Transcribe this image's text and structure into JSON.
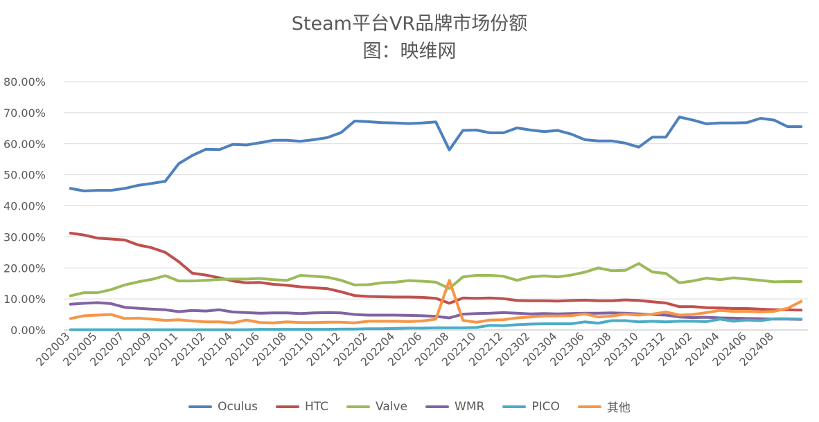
{
  "chart_data": {
    "type": "line",
    "title": "Steam平台VR品牌市场份额",
    "subtitle": "图：映维网",
    "xlabel": "",
    "ylabel": "",
    "ylim": [
      0,
      80
    ],
    "y_ticks": [
      "0.00%",
      "10.00%",
      "20.00%",
      "30.00%",
      "40.00%",
      "50.00%",
      "60.00%",
      "70.00%",
      "80.00%"
    ],
    "grid": true,
    "legend_position": "bottom",
    "categories": [
      "202003",
      "202004",
      "202005",
      "202006",
      "202007",
      "202008",
      "202009",
      "202010",
      "202011",
      "202012",
      "202101",
      "202102",
      "202103",
      "202104",
      "202105",
      "202106",
      "202107",
      "202108",
      "202109",
      "202110",
      "202111",
      "202112",
      "202201",
      "202202",
      "202203",
      "202204",
      "202205",
      "202206",
      "202207",
      "202208",
      "202209",
      "202210",
      "202211",
      "202212",
      "202301",
      "202302",
      "202303",
      "202304",
      "202305",
      "202306",
      "202307",
      "202308",
      "202309",
      "202310",
      "202311",
      "202312",
      "202401",
      "202402",
      "202403",
      "202404",
      "202405",
      "202406",
      "202407",
      "202408",
      "202409"
    ],
    "x_tick_labels": [
      "202003",
      "202005",
      "202007",
      "202009",
      "202011",
      "202102",
      "202104",
      "202106",
      "202108",
      "202110",
      "202112",
      "202202",
      "202204",
      "202206",
      "202208",
      "202210",
      "202212",
      "202302",
      "202304",
      "202306",
      "202308",
      "202310",
      "202312",
      "202402",
      "202404",
      "202406",
      "202408"
    ],
    "x_tick_indices": [
      0,
      2,
      4,
      6,
      8,
      10,
      12,
      14,
      16,
      18,
      20,
      22,
      24,
      26,
      28,
      30,
      32,
      34,
      36,
      38,
      40,
      42,
      44,
      46,
      48,
      50,
      52
    ],
    "series": [
      {
        "name": "Oculus",
        "color": "#4e81bd",
        "values": [
          45.6,
          44.8,
          45.0,
          45.0,
          45.6,
          46.6,
          47.2,
          47.9,
          53.6,
          56.2,
          58.2,
          58.1,
          59.8,
          59.6,
          60.3,
          61.1,
          61.1,
          60.8,
          61.3,
          62.0,
          63.6,
          67.3,
          67.1,
          66.8,
          66.7,
          66.5,
          66.7,
          67.0,
          58.0,
          64.3,
          64.4,
          63.5,
          63.5,
          65.1,
          64.4,
          63.9,
          64.3,
          63.1,
          61.3,
          60.9,
          60.9,
          60.2,
          58.9,
          62.1,
          62.1,
          68.6,
          67.6,
          66.4,
          66.7,
          66.7,
          66.8,
          68.2,
          67.6,
          65.5,
          65.5
        ]
      },
      {
        "name": "HTC",
        "color": "#c0504d",
        "values": [
          31.2,
          30.6,
          29.6,
          29.3,
          29.0,
          27.4,
          26.5,
          25.0,
          22.0,
          18.3,
          17.7,
          16.8,
          15.8,
          15.2,
          15.3,
          14.7,
          14.4,
          13.9,
          13.6,
          13.3,
          12.3,
          11.1,
          10.8,
          10.7,
          10.6,
          10.6,
          10.5,
          10.2,
          8.6,
          10.3,
          10.2,
          10.3,
          10.1,
          9.5,
          9.4,
          9.4,
          9.3,
          9.5,
          9.6,
          9.4,
          9.4,
          9.7,
          9.5,
          9.1,
          8.7,
          7.5,
          7.5,
          7.2,
          7.1,
          6.9,
          6.9,
          6.7,
          6.5,
          6.5,
          6.4
        ]
      },
      {
        "name": "Valve",
        "color": "#9bbb59",
        "values": [
          11.0,
          12.0,
          12.0,
          13.0,
          14.5,
          15.5,
          16.3,
          17.5,
          15.8,
          15.8,
          16.0,
          16.3,
          16.4,
          16.4,
          16.6,
          16.2,
          16.0,
          17.6,
          17.3,
          17.0,
          16.0,
          14.5,
          14.6,
          15.2,
          15.4,
          15.9,
          15.7,
          15.4,
          13.4,
          17.1,
          17.6,
          17.6,
          17.3,
          16.0,
          17.1,
          17.4,
          17.1,
          17.7,
          18.6,
          20.0,
          19.1,
          19.2,
          21.4,
          18.7,
          18.2,
          15.2,
          15.8,
          16.7,
          16.2,
          16.8,
          16.4,
          16.0,
          15.5,
          15.6,
          15.6
        ]
      },
      {
        "name": "WMR",
        "color": "#8064a2",
        "values": [
          8.3,
          8.6,
          8.8,
          8.5,
          7.3,
          7.0,
          6.7,
          6.5,
          5.9,
          6.3,
          6.1,
          6.5,
          5.8,
          5.6,
          5.4,
          5.5,
          5.5,
          5.3,
          5.5,
          5.6,
          5.5,
          5.0,
          4.8,
          4.8,
          4.8,
          4.7,
          4.6,
          4.4,
          3.9,
          5.1,
          5.3,
          5.4,
          5.6,
          5.4,
          5.2,
          5.3,
          5.2,
          5.3,
          5.4,
          5.4,
          5.5,
          5.4,
          5.2,
          5.0,
          4.8,
          4.2,
          4.0,
          4.1,
          3.9,
          3.8,
          3.7,
          3.6,
          3.5,
          3.5,
          3.4
        ]
      },
      {
        "name": "PICO",
        "color": "#4bacc6",
        "values": [
          0.1,
          0.1,
          0.1,
          0.1,
          0.1,
          0.1,
          0.1,
          0.1,
          0.1,
          0.1,
          0.1,
          0.1,
          0.1,
          0.1,
          0.2,
          0.2,
          0.2,
          0.2,
          0.2,
          0.2,
          0.3,
          0.3,
          0.4,
          0.4,
          0.5,
          0.6,
          0.6,
          0.7,
          0.7,
          0.7,
          0.8,
          1.5,
          1.4,
          1.7,
          1.9,
          2.0,
          2.0,
          2.0,
          2.6,
          2.2,
          3.0,
          3.0,
          2.6,
          2.8,
          2.6,
          2.8,
          2.8,
          2.7,
          3.5,
          2.8,
          3.2,
          3.0,
          3.6,
          3.6,
          3.5
        ]
      },
      {
        "name": "其他",
        "color": "#f79646",
        "values": [
          3.7,
          4.6,
          4.8,
          5.0,
          3.7,
          3.8,
          3.5,
          3.1,
          3.3,
          2.9,
          2.6,
          2.6,
          2.3,
          3.2,
          2.4,
          2.3,
          2.6,
          2.4,
          2.4,
          2.5,
          2.5,
          2.3,
          2.8,
          2.8,
          2.8,
          2.7,
          2.9,
          3.5,
          16.0,
          3.1,
          2.5,
          3.2,
          3.3,
          3.9,
          4.2,
          4.5,
          4.5,
          4.6,
          5.2,
          4.2,
          4.5,
          5.1,
          4.8,
          5.1,
          5.8,
          4.8,
          5.0,
          5.6,
          6.3,
          6.0,
          6.0,
          5.8,
          6.0,
          7.0,
          9.2
        ]
      }
    ]
  }
}
